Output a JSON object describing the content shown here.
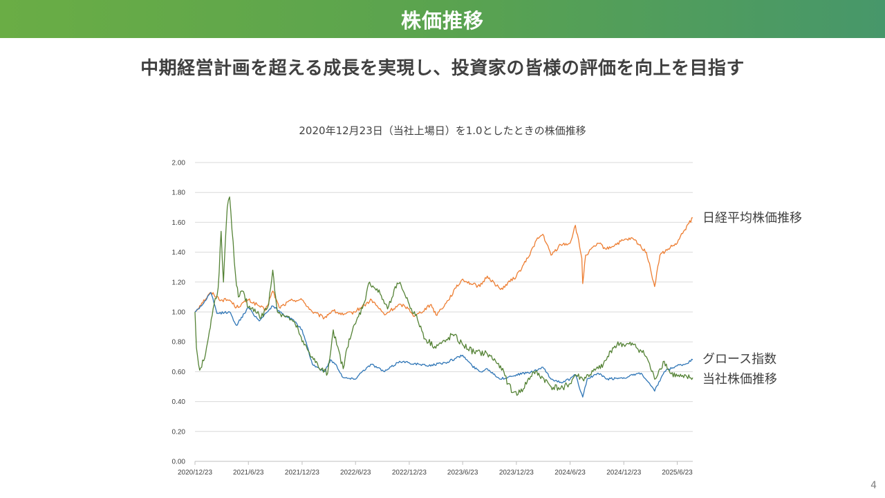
{
  "slide": {
    "title": "株価推移",
    "subtitle": "中期経営計画を超える成長を実現し、投資家の皆様の評価を向上を目指す",
    "page_number": "4"
  },
  "chart_data": {
    "type": "line",
    "title": "2020年12月23日（当社上場日）を1.0としたときの株価推移",
    "xlabel": "",
    "ylabel": "",
    "ylim": [
      0,
      2.0
    ],
    "y_ticks": [
      "0.00",
      "0.20",
      "0.40",
      "0.60",
      "0.80",
      "1.00",
      "1.20",
      "1.40",
      "1.60",
      "1.80",
      "2.00"
    ],
    "x_ticks": [
      "2020/12/23",
      "2021/6/23",
      "2021/12/23",
      "2022/6/23",
      "2022/12/23",
      "2023/6/23",
      "2023/12/23",
      "2024/6/23",
      "2024/12/23",
      "2025/6/23"
    ],
    "x_range": [
      "2020/12/23",
      "2025/8/15"
    ],
    "grid": true,
    "legend": "labels at right end of lines",
    "series": [
      {
        "name": "日経平均株価推移",
        "color": "#ED7D31",
        "points": [
          [
            "2020/12/23",
            1.0
          ],
          [
            "2021/1/15",
            1.06
          ],
          [
            "2021/2/16",
            1.13
          ],
          [
            "2021/3/22",
            1.08
          ],
          [
            "2021/4/20",
            1.08
          ],
          [
            "2021/5/13",
            1.03
          ],
          [
            "2021/6/23",
            1.08
          ],
          [
            "2021/7/30",
            1.04
          ],
          [
            "2021/8/20",
            1.01
          ],
          [
            "2021/9/14",
            1.14
          ],
          [
            "2021/10/6",
            1.03
          ],
          [
            "2021/11/20",
            1.08
          ],
          [
            "2021/12/23",
            1.08
          ],
          [
            "2022/1/27",
            1.0
          ],
          [
            "2022/3/9",
            0.96
          ],
          [
            "2022/4/5",
            1.01
          ],
          [
            "2022/5/12",
            0.98
          ],
          [
            "2022/6/20",
            1.0
          ],
          [
            "2022/8/17",
            1.08
          ],
          [
            "2022/9/30",
            0.98
          ],
          [
            "2022/10/20",
            1.01
          ],
          [
            "2022/11/25",
            1.05
          ],
          [
            "2022/12/23",
            1.02
          ],
          [
            "2023/1/10",
            0.97
          ],
          [
            "2023/3/8",
            1.05
          ],
          [
            "2023/3/24",
            0.98
          ],
          [
            "2023/4/28",
            1.06
          ],
          [
            "2023/5/31",
            1.16
          ],
          [
            "2023/6/23",
            1.22
          ],
          [
            "2023/7/20",
            1.19
          ],
          [
            "2023/8/21",
            1.17
          ],
          [
            "2023/9/15",
            1.24
          ],
          [
            "2023/10/30",
            1.15
          ],
          [
            "2023/12/23",
            1.24
          ],
          [
            "2024/1/31",
            1.36
          ],
          [
            "2024/2/29",
            1.48
          ],
          [
            "2024/3/22",
            1.52
          ],
          [
            "2024/4/19",
            1.38
          ],
          [
            "2024/5/22",
            1.45
          ],
          [
            "2024/6/23",
            1.46
          ],
          [
            "2024/7/11",
            1.58
          ],
          [
            "2024/8/2",
            1.36
          ],
          [
            "2024/8/5",
            1.19
          ],
          [
            "2024/8/15",
            1.38
          ],
          [
            "2024/9/27",
            1.46
          ],
          [
            "2024/10/25",
            1.42
          ],
          [
            "2024/12/23",
            1.48
          ],
          [
            "2025/1/24",
            1.49
          ],
          [
            "2025/3/10",
            1.4
          ],
          [
            "2025/4/7",
            1.17
          ],
          [
            "2025/4/25",
            1.38
          ],
          [
            "2025/5/30",
            1.43
          ],
          [
            "2025/6/23",
            1.46
          ],
          [
            "2025/7/15",
            1.54
          ],
          [
            "2025/8/15",
            1.63
          ]
        ]
      },
      {
        "name": "グロース指数",
        "color": "#2E75B6",
        "points": [
          [
            "2020/12/23",
            1.0
          ],
          [
            "2021/1/18",
            1.05
          ],
          [
            "2021/2/15",
            1.13
          ],
          [
            "2021/3/8",
            0.99
          ],
          [
            "2021/4/20",
            1.0
          ],
          [
            "2021/5/13",
            0.91
          ],
          [
            "2021/6/23",
            1.03
          ],
          [
            "2021/7/30",
            0.94
          ],
          [
            "2021/8/20",
            0.99
          ],
          [
            "2021/9/14",
            1.04
          ],
          [
            "2021/10/15",
            0.99
          ],
          [
            "2021/11/20",
            0.95
          ],
          [
            "2021/12/23",
            0.88
          ],
          [
            "2022/1/27",
            0.65
          ],
          [
            "2022/3/9",
            0.6
          ],
          [
            "2022/3/30",
            0.68
          ],
          [
            "2022/4/20",
            0.64
          ],
          [
            "2022/5/12",
            0.56
          ],
          [
            "2022/6/20",
            0.55
          ],
          [
            "2022/7/20",
            0.61
          ],
          [
            "2022/8/17",
            0.65
          ],
          [
            "2022/9/30",
            0.6
          ],
          [
            "2022/11/20",
            0.67
          ],
          [
            "2022/12/23",
            0.66
          ],
          [
            "2023/2/20",
            0.64
          ],
          [
            "2023/4/25",
            0.66
          ],
          [
            "2023/5/31",
            0.69
          ],
          [
            "2023/6/23",
            0.71
          ],
          [
            "2023/7/25",
            0.64
          ],
          [
            "2023/8/21",
            0.6
          ],
          [
            "2023/9/15",
            0.62
          ],
          [
            "2023/10/30",
            0.55
          ],
          [
            "2023/12/23",
            0.58
          ],
          [
            "2024/2/20",
            0.6
          ],
          [
            "2024/3/22",
            0.63
          ],
          [
            "2024/4/19",
            0.55
          ],
          [
            "2024/5/22",
            0.53
          ],
          [
            "2024/6/23",
            0.55
          ],
          [
            "2024/7/11",
            0.58
          ],
          [
            "2024/8/5",
            0.43
          ],
          [
            "2024/8/20",
            0.55
          ],
          [
            "2024/9/27",
            0.59
          ],
          [
            "2024/10/25",
            0.55
          ],
          [
            "2024/12/23",
            0.56
          ],
          [
            "2025/2/20",
            0.59
          ],
          [
            "2025/4/7",
            0.47
          ],
          [
            "2025/5/10",
            0.6
          ],
          [
            "2025/6/23",
            0.64
          ],
          [
            "2025/7/20",
            0.65
          ],
          [
            "2025/8/15",
            0.68
          ]
        ]
      },
      {
        "name": "当社株価推移",
        "color": "#548235",
        "points": [
          [
            "2020/12/23",
            1.0
          ],
          [
            "2020/12/28",
            0.76
          ],
          [
            "2021/1/8",
            0.61
          ],
          [
            "2021/1/25",
            0.69
          ],
          [
            "2021/2/10",
            0.87
          ],
          [
            "2021/2/26",
            1.05
          ],
          [
            "2021/3/12",
            1.16
          ],
          [
            "2021/3/22",
            1.54
          ],
          [
            "2021/3/30",
            1.2
          ],
          [
            "2021/4/12",
            1.7
          ],
          [
            "2021/4/20",
            1.77
          ],
          [
            "2021/4/28",
            1.55
          ],
          [
            "2021/5/10",
            1.25
          ],
          [
            "2021/5/20",
            1.1
          ],
          [
            "2021/6/3",
            1.14
          ],
          [
            "2021/6/23",
            1.03
          ],
          [
            "2021/7/15",
            1.02
          ],
          [
            "2021/8/5",
            0.96
          ],
          [
            "2021/8/31",
            1.05
          ],
          [
            "2021/9/14",
            1.28
          ],
          [
            "2021/9/30",
            1.0
          ],
          [
            "2021/10/20",
            0.98
          ],
          [
            "2021/11/15",
            0.95
          ],
          [
            "2021/12/10",
            0.88
          ],
          [
            "2021/12/23",
            0.8
          ],
          [
            "2022/1/27",
            0.7
          ],
          [
            "2022/2/20",
            0.62
          ],
          [
            "2022/3/20",
            0.59
          ],
          [
            "2022/4/8",
            0.88
          ],
          [
            "2022/4/20",
            0.78
          ],
          [
            "2022/5/12",
            0.62
          ],
          [
            "2022/6/1",
            0.82
          ],
          [
            "2022/6/23",
            0.92
          ],
          [
            "2022/7/20",
            1.05
          ],
          [
            "2022/8/10",
            1.2
          ],
          [
            "2022/9/15",
            1.12
          ],
          [
            "2022/10/10",
            1.02
          ],
          [
            "2022/11/5",
            1.17
          ],
          [
            "2022/11/25",
            1.18
          ],
          [
            "2022/12/23",
            1.05
          ],
          [
            "2023/1/20",
            0.95
          ],
          [
            "2023/2/15",
            0.82
          ],
          [
            "2023/3/20",
            0.77
          ],
          [
            "2023/4/25",
            0.8
          ],
          [
            "2023/5/20",
            0.85
          ],
          [
            "2023/6/23",
            0.78
          ],
          [
            "2023/8/1",
            0.73
          ],
          [
            "2023/9/15",
            0.72
          ],
          [
            "2023/10/30",
            0.64
          ],
          [
            "2023/11/25",
            0.52
          ],
          [
            "2023/12/10",
            0.46
          ],
          [
            "2024/1/5",
            0.46
          ],
          [
            "2024/2/20",
            0.6
          ],
          [
            "2024/3/22",
            0.56
          ],
          [
            "2024/4/19",
            0.5
          ],
          [
            "2024/5/22",
            0.49
          ],
          [
            "2024/6/23",
            0.52
          ],
          [
            "2024/7/11",
            0.58
          ],
          [
            "2024/8/5",
            0.55
          ],
          [
            "2024/9/27",
            0.62
          ],
          [
            "2024/10/25",
            0.68
          ],
          [
            "2024/11/15",
            0.76
          ],
          [
            "2024/12/10",
            0.79
          ],
          [
            "2024/12/23",
            0.78
          ],
          [
            "2025/1/24",
            0.78
          ],
          [
            "2025/2/20",
            0.74
          ],
          [
            "2025/3/10",
            0.7
          ],
          [
            "2025/4/7",
            0.55
          ],
          [
            "2025/4/25",
            0.62
          ],
          [
            "2025/5/10",
            0.67
          ],
          [
            "2025/5/30",
            0.59
          ],
          [
            "2025/6/23",
            0.57
          ],
          [
            "2025/7/15",
            0.56
          ],
          [
            "2025/8/15",
            0.56
          ]
        ]
      }
    ]
  }
}
